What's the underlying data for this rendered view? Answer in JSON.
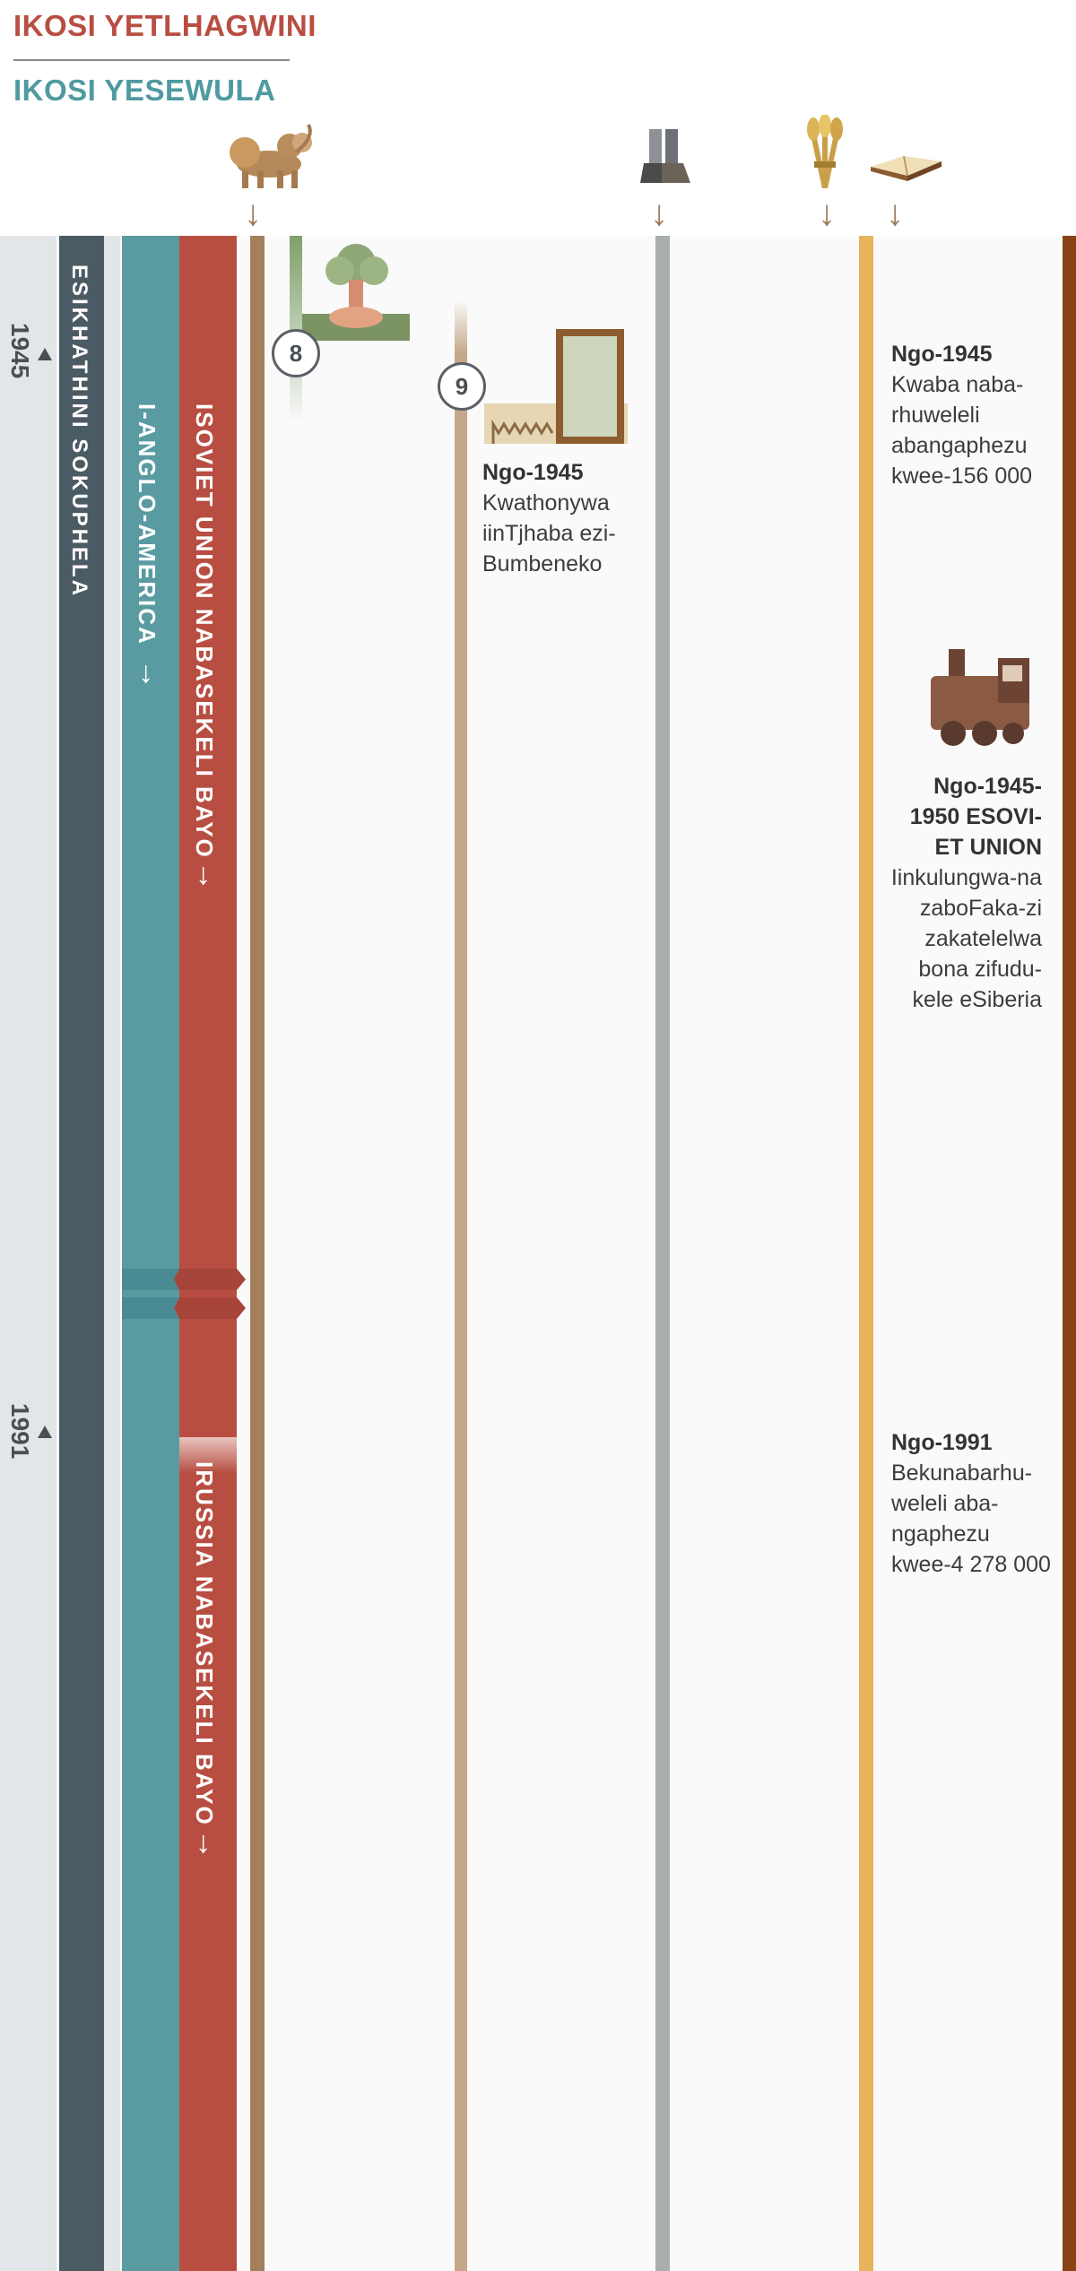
{
  "header": {
    "king_south": "IKOSI YETLHAGWINI",
    "king_north": "IKOSI YESEWULA"
  },
  "bands": {
    "last_days": "ESIKHATHINI SOKUPHELA",
    "anglo_america": "I-ANGLO-AMERICA",
    "soviet_union": "ISOVIET UNION NABASEKELI BAYO",
    "russia": "IRUSSIA NABASEKELI BAYO",
    "arrow": "→"
  },
  "years": {
    "y1945": "1945",
    "y1991": "1991"
  },
  "markers": {
    "m8": "8",
    "m9": "9"
  },
  "events": {
    "un": {
      "date": "Ngo-1945",
      "text": "Kwathonywa iinTjhaba ezi-Bumbeneko"
    },
    "publishers_1945": {
      "date": "Ngo-1945",
      "text": "Kwaba naba-rhuweleli abangaphezu kwee-156 000"
    },
    "siberia": {
      "date": "Ngo-1945-1950 ESOVI-ET UNION",
      "text": "Iinkulungwa-na zaboFaka-zi zakatelelwa bona zifudu-kele eSiberia"
    },
    "publishers_1991": {
      "date": "Ngo-1991",
      "text": "Bekunabarhu-weleli aba-ngaphezu kwee-4 278 000"
    }
  },
  "icons": [
    "lion-beast-icon",
    "iron-clay-feet-icon",
    "wheat-sheaf-icon",
    "open-bible-icon",
    "atomic-bomb-icon",
    "un-building-icon",
    "steam-train-icon"
  ],
  "colors": {
    "south_red": "#b84e42",
    "north_teal": "#5a9ba2",
    "last_days_slate": "#4b5b64",
    "bronze": "#a47f5c",
    "gold": "#e7b45c",
    "rust": "#8a4314"
  }
}
